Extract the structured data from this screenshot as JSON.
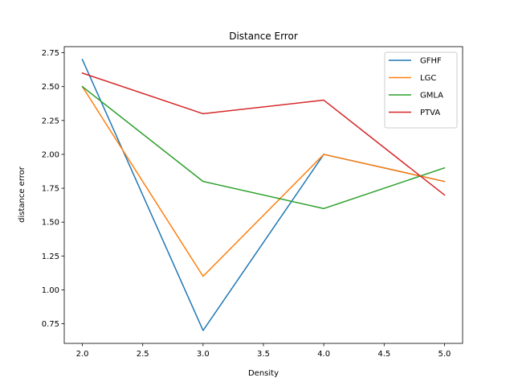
{
  "chart_data": {
    "type": "line",
    "title": "Distance Error",
    "xlabel": "Density",
    "ylabel": "distance error",
    "x": [
      2.0,
      3.0,
      4.0,
      5.0
    ],
    "xlim": [
      1.85,
      5.15
    ],
    "ylim": [
      0.605,
      2.795
    ],
    "xticks": [
      "2.0",
      "2.5",
      "3.0",
      "3.5",
      "4.0",
      "4.5",
      "5.0"
    ],
    "yticks": [
      "0.75",
      "1.00",
      "1.25",
      "1.50",
      "1.75",
      "2.00",
      "2.25",
      "2.50",
      "2.75"
    ],
    "grid": false,
    "legend_position": "top-right",
    "series": [
      {
        "name": "GFHF",
        "color": "#1f77b4",
        "values": [
          2.7,
          0.7,
          2.0,
          1.8
        ]
      },
      {
        "name": "LGC",
        "color": "#ff7f0e",
        "values": [
          2.5,
          1.1,
          2.0,
          1.8
        ]
      },
      {
        "name": "GMLA",
        "color": "#2ca02c",
        "values": [
          2.5,
          1.8,
          1.6,
          1.9
        ]
      },
      {
        "name": "PTVA",
        "color": "#d62728",
        "values": [
          2.6,
          2.3,
          2.4,
          1.7
        ]
      }
    ]
  }
}
